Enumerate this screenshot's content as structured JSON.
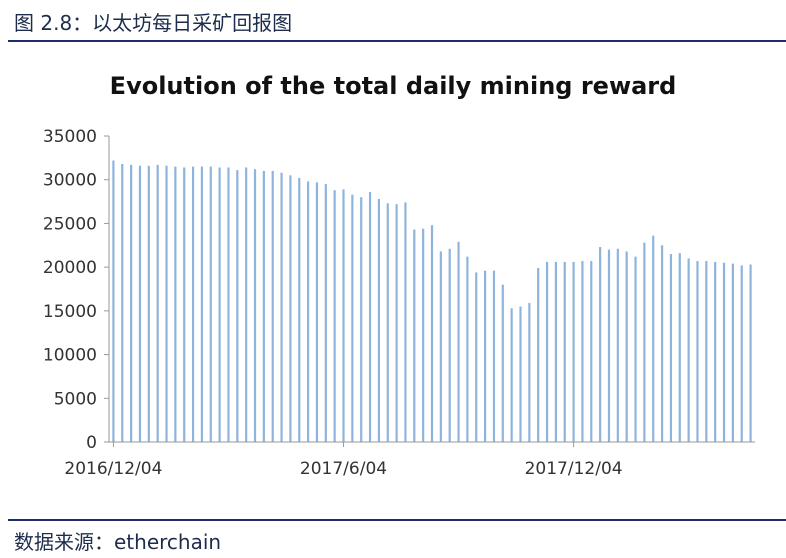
{
  "caption": "图 2.8：以太坊每日采矿回报图",
  "source": "数据来源：etherchain",
  "chart_data": {
    "type": "bar",
    "title": "Evolution of the total daily mining reward",
    "xlabel": "",
    "ylabel": "",
    "ylim": [
      0,
      35000
    ],
    "yticks": [
      "35000",
      "30000",
      "25000",
      "20000",
      "15000",
      "10000",
      "5000",
      "0"
    ],
    "xticks": [
      {
        "label": "2016/12/04",
        "index": 0
      },
      {
        "label": "2017/6/04",
        "index": 26
      },
      {
        "label": "2017/12/04",
        "index": 52
      }
    ],
    "bar_color": "#8fb4dc",
    "series": [
      {
        "values": [
          32200,
          31800,
          31700,
          31600,
          31600,
          31700,
          31600,
          31500,
          31400,
          31500,
          31500,
          31500,
          31400,
          31400,
          31100,
          31400,
          31200,
          31000,
          31000,
          30800,
          30500,
          30200,
          29800,
          29700,
          29500,
          28800,
          28900,
          28300,
          28000,
          28600,
          27800,
          27300,
          27200,
          27400,
          24300,
          24400,
          24800,
          21800,
          22100,
          22900,
          21200,
          19400,
          19600,
          19600,
          18000,
          15300,
          15500,
          15900,
          19900,
          20600,
          20600,
          20600,
          20600,
          20700,
          20700,
          22300,
          22000,
          22100,
          21800,
          21200,
          22800,
          23600,
          22500,
          21500,
          21600,
          21000,
          20700,
          20700,
          20600,
          20500,
          20400,
          20200,
          20300
        ]
      }
    ]
  }
}
